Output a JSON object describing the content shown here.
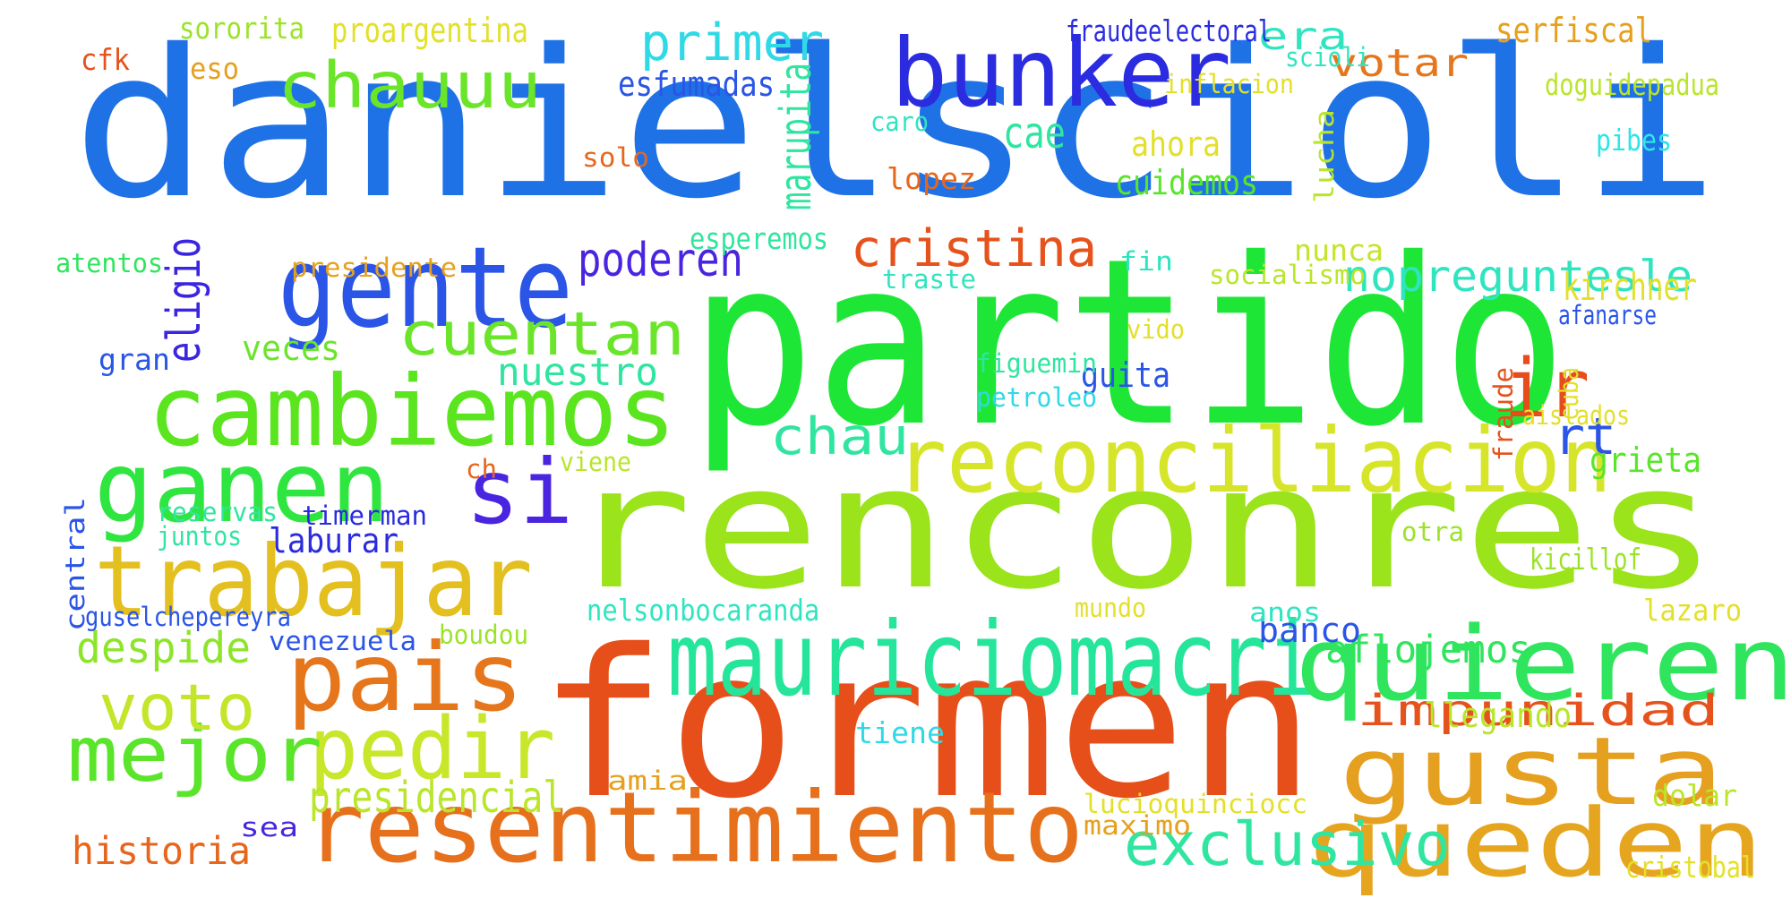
{
  "words": [
    {
      "text": "danielscioli",
      "color": "#1f72e6"
    },
    {
      "text": "partido",
      "color": "#1ee637"
    },
    {
      "text": "renconres",
      "color": "#9be31b"
    },
    {
      "text": "formen",
      "color": "#e64f1a"
    },
    {
      "text": "resentimiento",
      "color": "#e6701c"
    },
    {
      "text": "mauriciomacri",
      "color": "#25e59a"
    },
    {
      "text": "reconciliacion",
      "color": "#d6e52a"
    },
    {
      "text": "cambiemos",
      "color": "#5ae51f"
    },
    {
      "text": "gente",
      "color": "#2a55e6"
    },
    {
      "text": "bunker",
      "color": "#2b2be0"
    },
    {
      "text": "ganen",
      "color": "#2fe53f"
    },
    {
      "text": "trabajar",
      "color": "#e3c01f"
    },
    {
      "text": "quieren",
      "color": "#2fe55d"
    },
    {
      "text": "gusta",
      "color": "#e6a01f"
    },
    {
      "text": "queden",
      "color": "#e6a51f"
    },
    {
      "text": "pais",
      "color": "#e6761c"
    },
    {
      "text": "pedir",
      "color": "#c8e62a"
    },
    {
      "text": "mejor",
      "color": "#5ae52a"
    },
    {
      "text": "voto",
      "color": "#c3e52a"
    },
    {
      "text": "si",
      "color": "#4a25e0"
    },
    {
      "text": "ir",
      "color": "#e64c1c"
    },
    {
      "text": "chauuu",
      "color": "#6ae52a"
    },
    {
      "text": "cuentan",
      "color": "#6ae52a"
    },
    {
      "text": "cristina",
      "color": "#e6521c"
    },
    {
      "text": "chau",
      "color": "#2fe5a0"
    },
    {
      "text": "exclusivo",
      "color": "#2fe5a0"
    },
    {
      "text": "historia",
      "color": "#e6661c"
    },
    {
      "text": "presidencial",
      "color": "#b9e52a"
    },
    {
      "text": "despide",
      "color": "#8de52a"
    },
    {
      "text": "nopreguntesle",
      "color": "#2fe5c0"
    },
    {
      "text": "rt",
      "color": "#2a55e6"
    },
    {
      "text": "primer",
      "color": "#2fd9e5"
    },
    {
      "text": "poderen",
      "color": "#4a25e0"
    },
    {
      "text": "eligio",
      "color": "#3a25e0"
    },
    {
      "text": "nuestro",
      "color": "#2fe5a0"
    },
    {
      "text": "impunidad",
      "color": "#e6521c"
    },
    {
      "text": "aflojemos",
      "color": "#2fe55d"
    },
    {
      "text": "kirchner",
      "color": "#e3e02a"
    },
    {
      "text": "votar",
      "color": "#e6761c"
    },
    {
      "text": "era",
      "color": "#2fe5c0"
    },
    {
      "text": "esfumadas",
      "color": "#2a55e6"
    },
    {
      "text": "marupita",
      "color": "#2fe5a0"
    },
    {
      "text": "cae",
      "color": "#2fe5a0"
    },
    {
      "text": "ahora",
      "color": "#e3e02a"
    },
    {
      "text": "cuidemos",
      "color": "#5ae52a"
    },
    {
      "text": "lopez",
      "color": "#e6661c"
    },
    {
      "text": "veces",
      "color": "#6ae52a"
    },
    {
      "text": "gran",
      "color": "#2a55e6"
    },
    {
      "text": "guita",
      "color": "#2a55e6"
    },
    {
      "text": "grieta",
      "color": "#5ae52a"
    },
    {
      "text": "banco",
      "color": "#2a55e6"
    },
    {
      "text": "llegando",
      "color": "#b9e52a"
    },
    {
      "text": "laburar",
      "color": "#2a2be0"
    },
    {
      "text": "serfiscal",
      "color": "#e6a01f"
    },
    {
      "text": "proargentina",
      "color": "#e3e02a"
    },
    {
      "text": "sororita",
      "color": "#9be32a"
    },
    {
      "text": "fraudeelectoral",
      "color": "#2a2be0"
    },
    {
      "text": "scioli",
      "color": "#2fe5c0"
    },
    {
      "text": "inflacion",
      "color": "#e3e02a"
    },
    {
      "text": "doguidepadua",
      "color": "#b9e52a"
    },
    {
      "text": "cfk",
      "color": "#e6521c"
    },
    {
      "text": "eso",
      "color": "#e6a01f"
    },
    {
      "text": "caro",
      "color": "#2fe5c0"
    },
    {
      "text": "solo",
      "color": "#e6661c"
    },
    {
      "text": "lucha",
      "color": "#b9e52a"
    },
    {
      "text": "pibes",
      "color": "#2fe5e5"
    },
    {
      "text": "esperemos",
      "color": "#2fe5a0"
    },
    {
      "text": "presidente",
      "color": "#e6a01f"
    },
    {
      "text": "atentos",
      "color": "#2fe55d"
    },
    {
      "text": "traste",
      "color": "#2fe5c0"
    },
    {
      "text": "fin",
      "color": "#2fe5c0"
    },
    {
      "text": "socialismo",
      "color": "#b9e52a"
    },
    {
      "text": "nunca",
      "color": "#c3e52a"
    },
    {
      "text": "afanarse",
      "color": "#2a55e6"
    },
    {
      "text": "vido",
      "color": "#e3e02a"
    },
    {
      "text": "figuemin",
      "color": "#2fe5a0"
    },
    {
      "text": "petroleo",
      "color": "#2fd9e5"
    },
    {
      "text": "fraude",
      "color": "#e6521c"
    },
    {
      "text": "cuba",
      "color": "#e3e02a"
    },
    {
      "text": "aislados",
      "color": "#e3e02a"
    },
    {
      "text": "ch",
      "color": "#e6661c"
    },
    {
      "text": "viene",
      "color": "#b9e52a"
    },
    {
      "text": "reservas",
      "color": "#2fe5a0"
    },
    {
      "text": "timerman",
      "color": "#2a2be0"
    },
    {
      "text": "juntos",
      "color": "#2fe5a0"
    },
    {
      "text": "central",
      "color": "#2a55e6"
    },
    {
      "text": "otra",
      "color": "#9be32a"
    },
    {
      "text": "kicillof",
      "color": "#9be32a"
    },
    {
      "text": "nelsonbocaranda",
      "color": "#2fe5c0"
    },
    {
      "text": "mundo",
      "color": "#e3e02a"
    },
    {
      "text": "anos",
      "color": "#2fe5c0"
    },
    {
      "text": "lazaro",
      "color": "#e3e02a"
    },
    {
      "text": "guselchepereyra",
      "color": "#2a55e6"
    },
    {
      "text": "venezuela",
      "color": "#2a55e6"
    },
    {
      "text": "boudou",
      "color": "#9be32a"
    },
    {
      "text": "tiene",
      "color": "#2fd9e5"
    },
    {
      "text": "amia",
      "color": "#e6a01f"
    },
    {
      "text": "lucioquinciocc",
      "color": "#e3e02a"
    },
    {
      "text": "dolar",
      "color": "#b9e52a"
    },
    {
      "text": "sea",
      "color": "#4a25e0"
    },
    {
      "text": "maximo",
      "color": "#e6a01f"
    },
    {
      "text": "cristobal",
      "color": "#e3e02a"
    }
  ]
}
